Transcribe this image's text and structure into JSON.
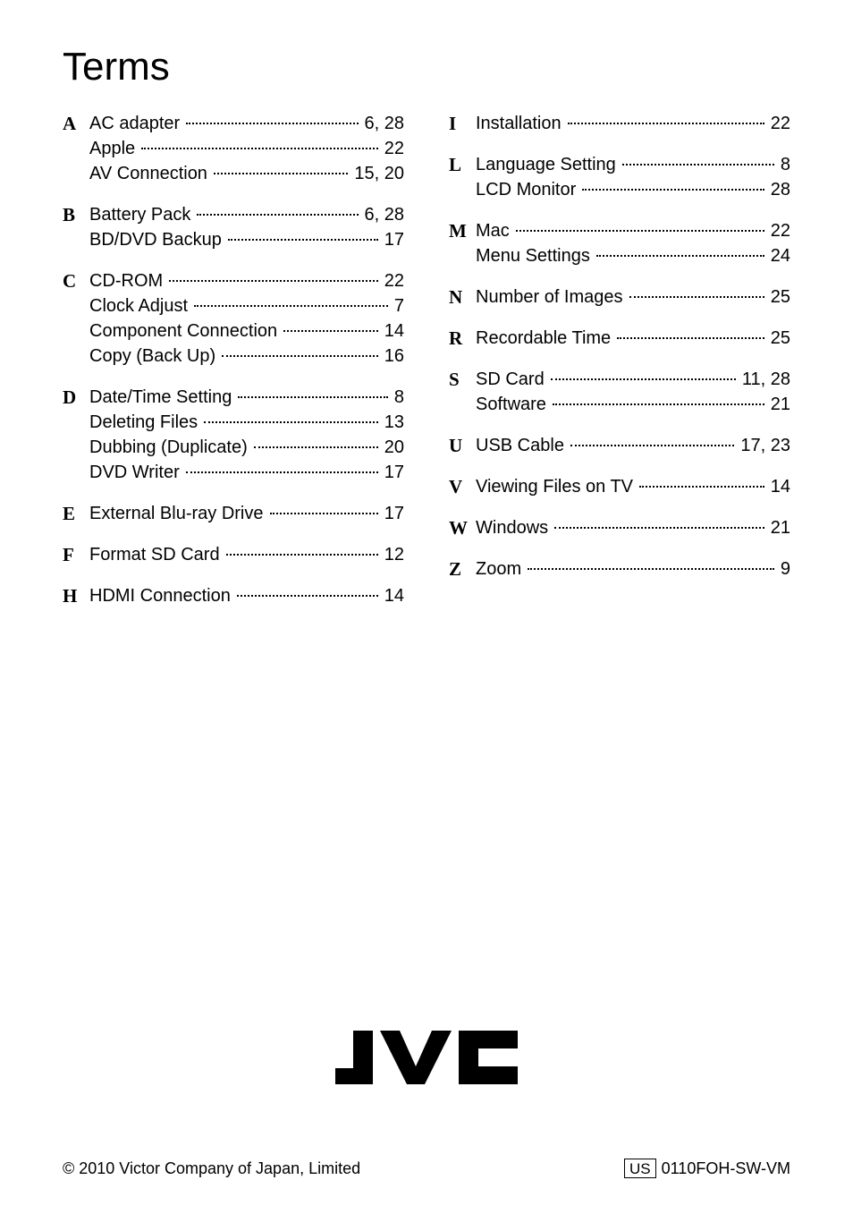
{
  "title": "Terms",
  "title_fontsize": 44,
  "body_fontsize": 20,
  "letter_fontsize": 21,
  "line_height": 28,
  "text_color": "#000000",
  "background_color": "#ffffff",
  "left_column": [
    {
      "letter": "A",
      "items": [
        {
          "term": "AC adapter",
          "pages": "6, 28"
        },
        {
          "term": "Apple",
          "pages": "22"
        },
        {
          "term": "AV Connection",
          "pages": "15, 20"
        }
      ]
    },
    {
      "letter": "B",
      "items": [
        {
          "term": "Battery Pack",
          "pages": "6, 28"
        },
        {
          "term": "BD/DVD Backup",
          "pages": "17"
        }
      ]
    },
    {
      "letter": "C",
      "items": [
        {
          "term": "CD-ROM",
          "pages": "22"
        },
        {
          "term": "Clock Adjust",
          "pages": "7"
        },
        {
          "term": "Component Connection",
          "pages": "14"
        },
        {
          "term": "Copy (Back Up)",
          "pages": "16"
        }
      ]
    },
    {
      "letter": "D",
      "items": [
        {
          "term": "Date/Time Setting",
          "pages": "8"
        },
        {
          "term": "Deleting Files",
          "pages": "13"
        },
        {
          "term": "Dubbing (Duplicate)",
          "pages": "20"
        },
        {
          "term": "DVD Writer",
          "pages": "17"
        }
      ]
    },
    {
      "letter": "E",
      "items": [
        {
          "term": "External Blu-ray Drive",
          "pages": "17"
        }
      ]
    },
    {
      "letter": "F",
      "items": [
        {
          "term": "Format SD Card",
          "pages": "12"
        }
      ]
    },
    {
      "letter": "H",
      "items": [
        {
          "term": "HDMI Connection",
          "pages": "14"
        }
      ]
    }
  ],
  "right_column": [
    {
      "letter": "I",
      "items": [
        {
          "term": "Installation",
          "pages": "22"
        }
      ]
    },
    {
      "letter": "L",
      "items": [
        {
          "term": "Language Setting",
          "pages": "8"
        },
        {
          "term": "LCD Monitor",
          "pages": "28"
        }
      ]
    },
    {
      "letter": "M",
      "items": [
        {
          "term": "Mac",
          "pages": "22"
        },
        {
          "term": "Menu Settings",
          "pages": "24"
        }
      ]
    },
    {
      "letter": "N",
      "items": [
        {
          "term": "Number of Images",
          "pages": "25"
        }
      ]
    },
    {
      "letter": "R",
      "items": [
        {
          "term": "Recordable Time",
          "pages": "25"
        }
      ]
    },
    {
      "letter": "S",
      "items": [
        {
          "term": "SD Card",
          "pages": "11, 28"
        },
        {
          "term": "Software",
          "pages": "21"
        }
      ]
    },
    {
      "letter": "U",
      "items": [
        {
          "term": "USB Cable",
          "pages": "17, 23"
        }
      ]
    },
    {
      "letter": "V",
      "items": [
        {
          "term": "Viewing Files on TV",
          "pages": "14"
        }
      ]
    },
    {
      "letter": "W",
      "items": [
        {
          "term": "Windows",
          "pages": "21"
        }
      ]
    },
    {
      "letter": "Z",
      "items": [
        {
          "term": "Zoom",
          "pages": "9"
        }
      ]
    }
  ],
  "logo_text": "JVC",
  "footer_left": "© 2010 Victor Company of Japan, Limited",
  "footer_region": "US",
  "footer_code": "0110FOH-SW-VM"
}
